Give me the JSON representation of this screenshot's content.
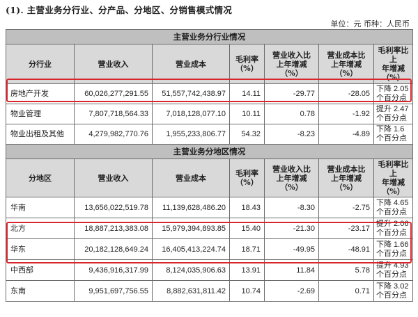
{
  "heading": "(1). 主营业务分行业、分产品、分地区、分销售模式情况",
  "unit_line": "单位：元  币种：人民币",
  "industry_section": {
    "title": "主营业务分行业情况",
    "headers": [
      "分行业",
      "营业收入",
      "营业成本",
      "毛利率\n（%）",
      "营业收入比\n上年增减\n（%）",
      "营业成本比\n上年增减\n（%）",
      "毛利率比上\n年增减（%）"
    ],
    "rows": [
      {
        "name": "房地产开发",
        "revenue": "60,026,277,291.55",
        "cost": "51,557,742,438.97",
        "margin": "14.11",
        "rev_chg": "-29.77",
        "cost_chg": "-28.05",
        "margin_chg": "下降 2.05 个百分点"
      },
      {
        "name": "物业管理",
        "revenue": "7,807,718,564.33",
        "cost": "7,018,128,077.10",
        "margin": "10.11",
        "rev_chg": "0.78",
        "cost_chg": "-1.92",
        "margin_chg": "提升 2.47 个百分点"
      },
      {
        "name": "物业出租及其他",
        "revenue": "4,279,982,770.76",
        "cost": "1,955,233,806.77",
        "margin": "54.32",
        "rev_chg": "-8.23",
        "cost_chg": "-4.89",
        "margin_chg": "下降 1.6 个百分点"
      }
    ]
  },
  "region_section": {
    "title": "主营业务分地区情况",
    "headers": [
      "分地区",
      "营业收入",
      "营业成本",
      "毛利率\n（%）",
      "营业收入比\n上年增减\n（%）",
      "营业成本比\n上年增减\n（%）",
      "毛利率比上\n年增减（%）"
    ],
    "rows": [
      {
        "name": "华南",
        "revenue": "13,656,022,519.78",
        "cost": "11,139,628,486.20",
        "margin": "18.43",
        "rev_chg": "-8.30",
        "cost_chg": "-2.75",
        "margin_chg": "下降 4.65 个百分点"
      },
      {
        "name": "北方",
        "revenue": "18,887,213,383.08",
        "cost": "15,979,394,893.85",
        "margin": "15.40",
        "rev_chg": "-21.30",
        "cost_chg": "-23.17",
        "margin_chg": "提升 2.06 个百分点"
      },
      {
        "name": "华东",
        "revenue": "20,182,128,649.24",
        "cost": "16,405,413,224.74",
        "margin": "18.71",
        "rev_chg": "-49.95",
        "cost_chg": "-48.91",
        "margin_chg": "下降 1.66 个百分点"
      },
      {
        "name": "中西部",
        "revenue": "9,436,916,317.99",
        "cost": "8,124,035,906.63",
        "margin": "13.91",
        "rev_chg": "11.84",
        "cost_chg": "5.78",
        "margin_chg": "提升 4.93 个百分点"
      },
      {
        "name": "东南",
        "revenue": "9,951,697,756.55",
        "cost": "8,882,631,811.42",
        "margin": "10.74",
        "rev_chg": "-2.69",
        "cost_chg": "0.71",
        "margin_chg": "下降 3.02 个百分点"
      }
    ]
  },
  "colors": {
    "highlight": "#d9262c",
    "section_title_bg": "#bfbfbf",
    "header_bg": "#d9d9d9"
  }
}
